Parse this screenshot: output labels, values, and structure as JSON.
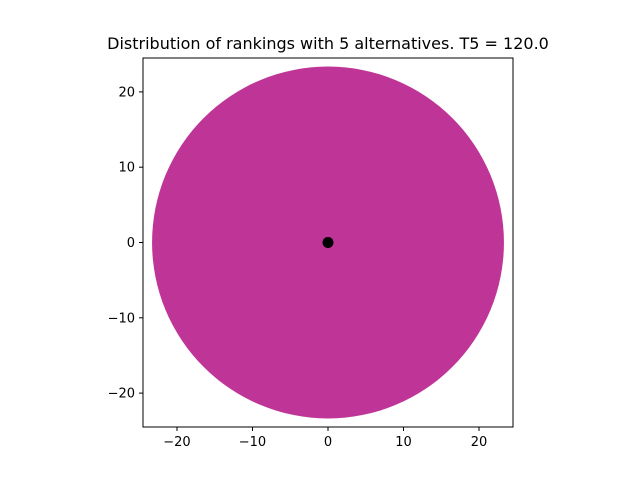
{
  "chart_data": {
    "type": "scatter",
    "title": "Distribution of rankings with 5 alternatives. T5 = 120.0",
    "xlabel": "",
    "ylabel": "",
    "xlim": [
      -24.5,
      24.5
    ],
    "ylim": [
      -24.5,
      24.5
    ],
    "xticks": [
      -20,
      -10,
      0,
      10,
      20
    ],
    "yticks": [
      -20,
      -10,
      0,
      10,
      20
    ],
    "grid": false,
    "legend": "none",
    "shapes": [
      {
        "kind": "circle",
        "cx": 0,
        "cy": 0,
        "r": 23.3,
        "color": "#bf3597"
      }
    ],
    "points": [
      {
        "x": 0,
        "y": 0,
        "color": "#000000"
      }
    ]
  },
  "colors": {
    "disk": "#bf3597",
    "center_point": "#000000",
    "axes": "#000000"
  }
}
